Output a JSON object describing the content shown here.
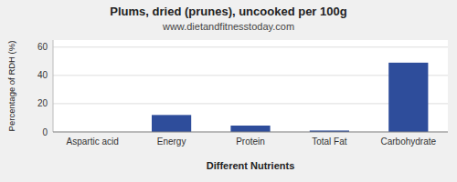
{
  "chart_data": {
    "type": "bar",
    "title": "Plums, dried (prunes), uncooked per 100g",
    "subtitle": "www.dietandfitnesstoday.com",
    "xlabel": "Different Nutrients",
    "ylabel": "Percentage of RDH (%)",
    "categories": [
      "Aspartic acid",
      "Energy",
      "Protein",
      "Total Fat",
      "Carbohydrate"
    ],
    "values": [
      0,
      12,
      4.5,
      1,
      49
    ],
    "color": "#2e4d9b",
    "ylim": [
      0,
      65
    ],
    "yticks": [
      0,
      20,
      40,
      60
    ],
    "grid": true
  }
}
